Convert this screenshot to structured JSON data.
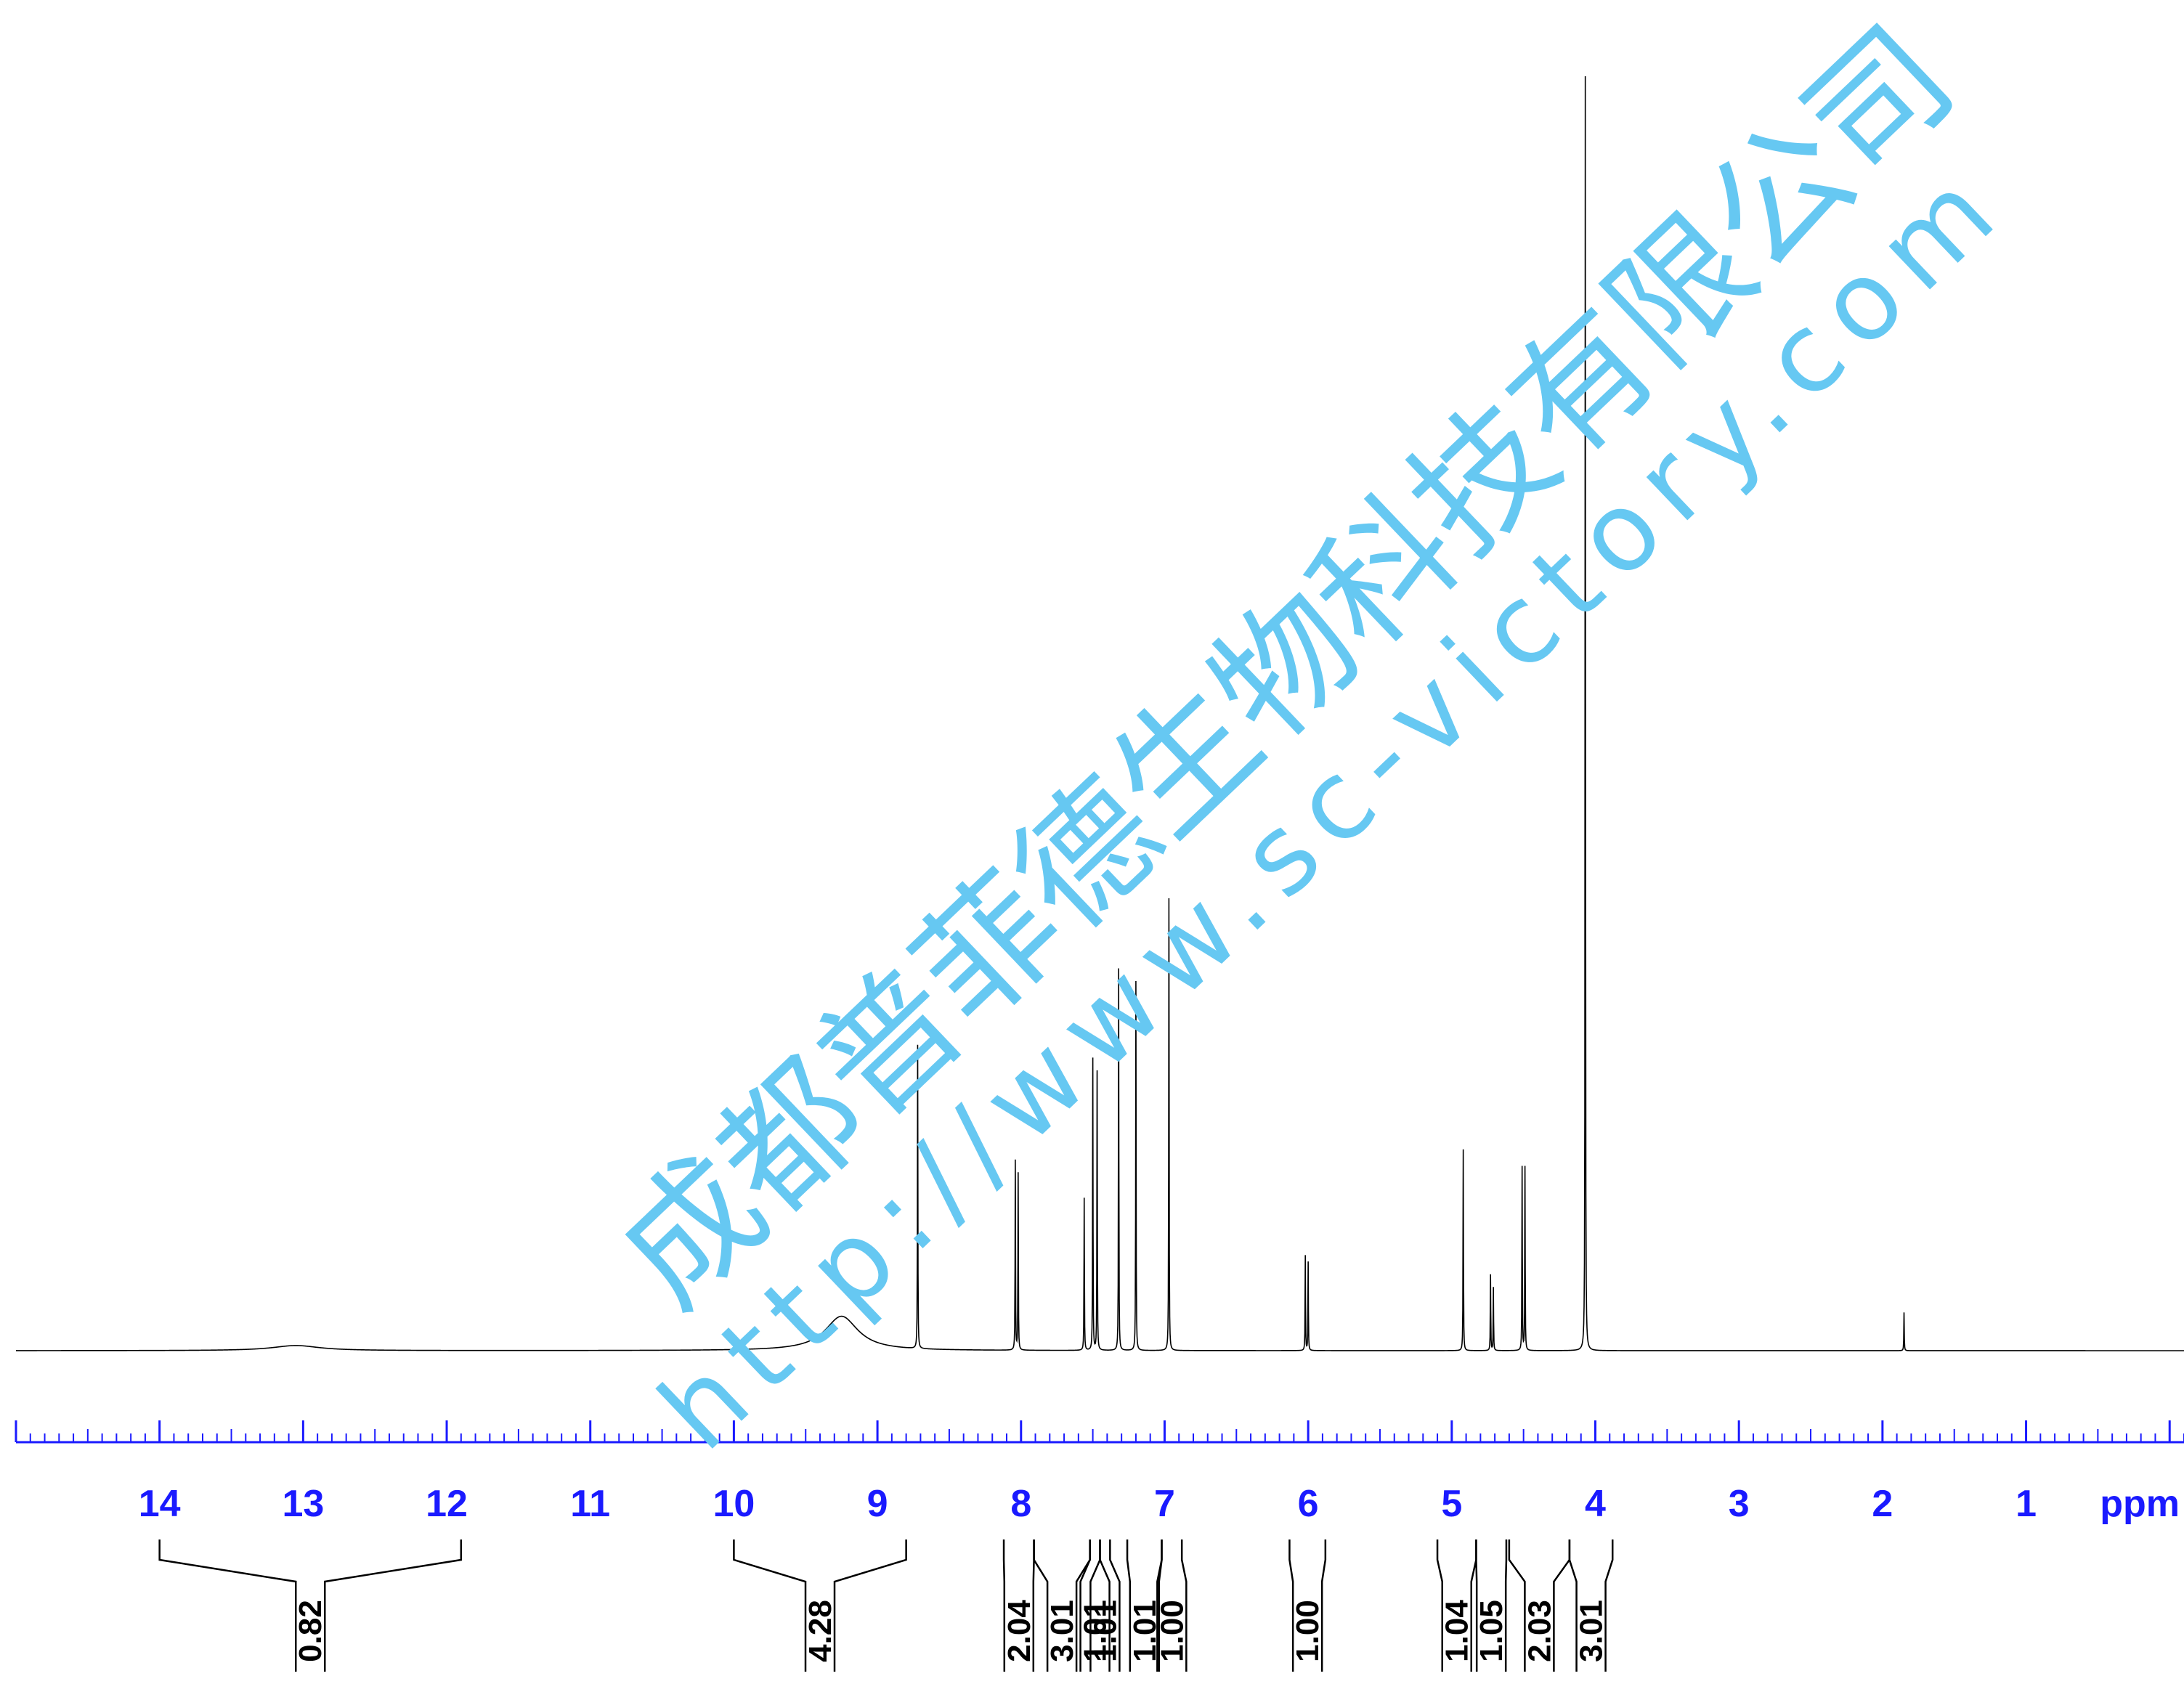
{
  "chart_data": {
    "type": "line",
    "xlabel": "ppm",
    "xlim": [
      15,
      -0.1
    ],
    "x_reversed": true,
    "ticks": [
      {
        "value": 14,
        "label": "14"
      },
      {
        "value": 13,
        "label": "13"
      },
      {
        "value": 12,
        "label": "12"
      },
      {
        "value": 11,
        "label": "11"
      },
      {
        "value": 10,
        "label": "10"
      },
      {
        "value": 9,
        "label": "9"
      },
      {
        "value": 8,
        "label": "8"
      },
      {
        "value": 7,
        "label": "7"
      },
      {
        "value": 6,
        "label": "6"
      },
      {
        "value": 5,
        "label": "5"
      },
      {
        "value": 4,
        "label": "4"
      },
      {
        "value": 3,
        "label": "3"
      },
      {
        "value": 2,
        "label": "2"
      },
      {
        "value": 1,
        "label": "1"
      }
    ],
    "peaks": [
      {
        "ppm": 4.07,
        "height": 1.0
      },
      {
        "ppm": 6.97,
        "height": 0.355
      },
      {
        "ppm": 7.32,
        "height": 0.3
      },
      {
        "ppm": 7.2,
        "height": 0.29
      },
      {
        "ppm": 8.72,
        "height": 0.24
      },
      {
        "ppm": 7.5,
        "height": 0.23
      },
      {
        "ppm": 7.47,
        "height": 0.22
      },
      {
        "ppm": 8.04,
        "height": 0.15
      },
      {
        "ppm": 8.02,
        "height": 0.14
      },
      {
        "ppm": 4.92,
        "height": 0.158
      },
      {
        "ppm": 4.51,
        "height": 0.145
      },
      {
        "ppm": 4.49,
        "height": 0.145
      },
      {
        "ppm": 7.56,
        "height": 0.12
      },
      {
        "ppm": 6.02,
        "height": 0.075
      },
      {
        "ppm": 6.0,
        "height": 0.07
      },
      {
        "ppm": 4.73,
        "height": 0.06
      },
      {
        "ppm": 4.71,
        "height": 0.05
      },
      {
        "ppm": 1.85,
        "height": 0.03
      }
    ],
    "broad_peaks": [
      {
        "ppm": 9.25,
        "height": 0.027,
        "width": 0.28
      },
      {
        "ppm": 13.05,
        "height": 0.004,
        "width": 0.4
      }
    ],
    "integrals": [
      {
        "from": 14.0,
        "to": 11.9,
        "value": "0.82"
      },
      {
        "from": 10.0,
        "to": 8.8,
        "value": "4.28"
      },
      {
        "from": 8.12,
        "to": 7.91,
        "value": "2.04"
      },
      {
        "from": 7.91,
        "to": 7.52,
        "value": "3.01"
      },
      {
        "from": 7.52,
        "to": 7.45,
        "value": "1.01"
      },
      {
        "from": 7.45,
        "to": 7.38,
        "value": "1.01"
      },
      {
        "from": 7.26,
        "to": 7.02,
        "value": "1.01"
      },
      {
        "from": 7.02,
        "to": 6.88,
        "value": "1.00"
      },
      {
        "from": 6.13,
        "to": 5.88,
        "value": "1.00"
      },
      {
        "from": 5.1,
        "to": 4.83,
        "value": "1.04"
      },
      {
        "from": 4.83,
        "to": 4.62,
        "value": "1.05"
      },
      {
        "from": 4.6,
        "to": 4.18,
        "value": "2.03"
      },
      {
        "from": 4.18,
        "to": 3.88,
        "value": "3.01"
      }
    ]
  },
  "watermark": {
    "company": "成都普菲德生物科技有限公司",
    "url": "http://www.sc-victory.com",
    "color": "#66c8f2"
  },
  "colors": {
    "axis": "#1a1aff",
    "spectrum": "#000000",
    "integrals": "#000000"
  }
}
